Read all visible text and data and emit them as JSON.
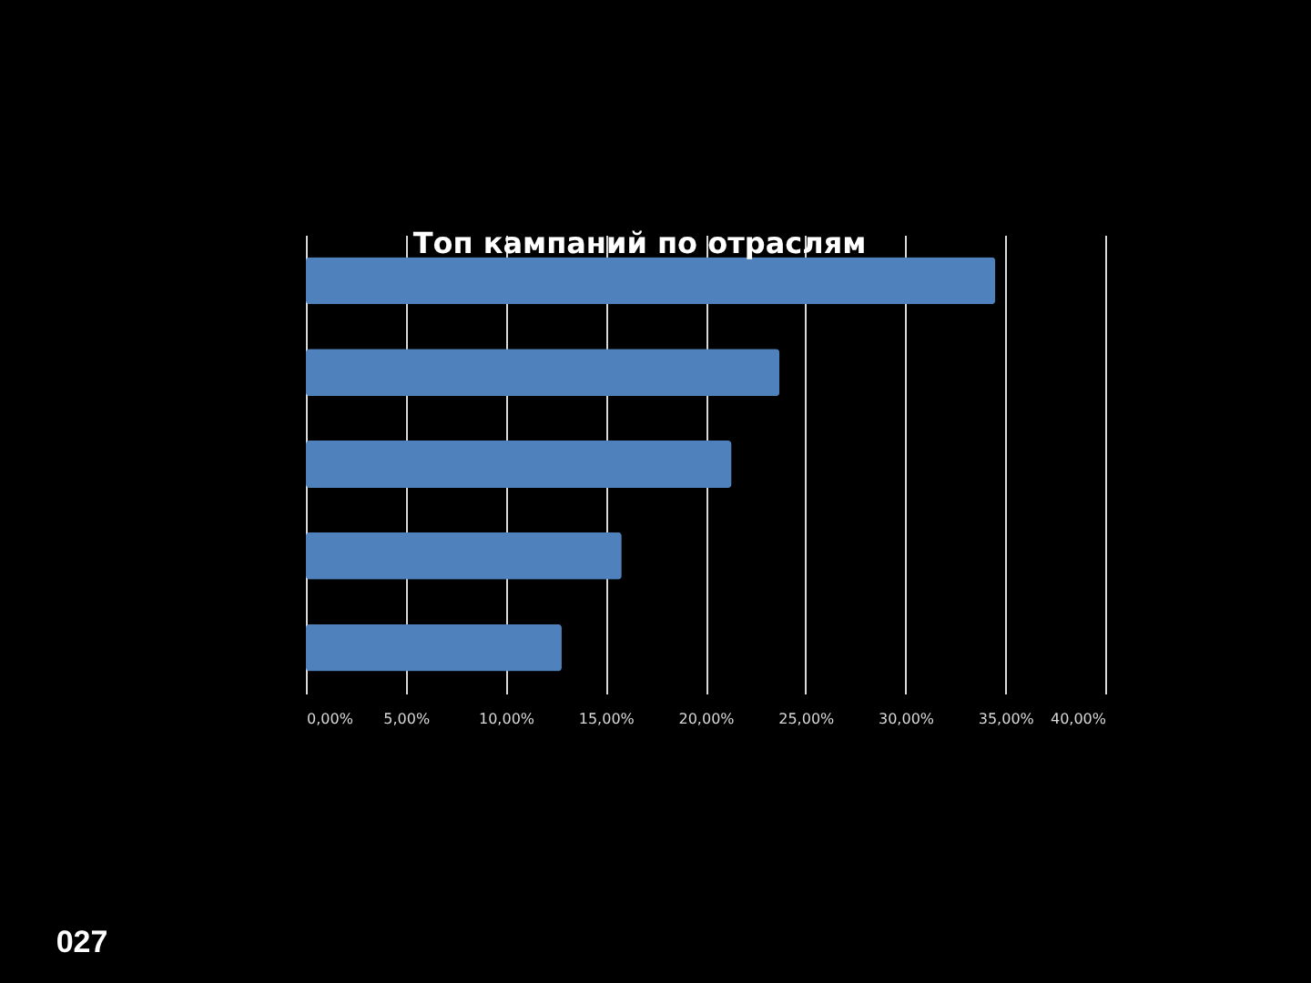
{
  "chart_data": {
    "type": "bar",
    "orientation": "horizontal",
    "title": "Топ кампаний по отраслям",
    "categories": [
      null,
      null,
      null,
      null,
      null
    ],
    "values": [
      34.5,
      23.7,
      21.3,
      15.8,
      12.8
    ],
    "color": "#4f81bd",
    "xlim": [
      0,
      40
    ],
    "xticks": [
      {
        "value": 0,
        "label": "0,00%"
      },
      {
        "value": 5,
        "label": "5,00%"
      },
      {
        "value": 10,
        "label": "10,00%"
      },
      {
        "value": 15,
        "label": "15,00%"
      },
      {
        "value": 20,
        "label": "20,00%"
      },
      {
        "value": 25,
        "label": "25,00%"
      },
      {
        "value": 30,
        "label": "30,00%"
      },
      {
        "value": 35,
        "label": "35,00%"
      },
      {
        "value": 40,
        "label": "40,00%"
      }
    ],
    "grid": "x",
    "tick_labels": "x",
    "annotations": [
      "027"
    ]
  }
}
